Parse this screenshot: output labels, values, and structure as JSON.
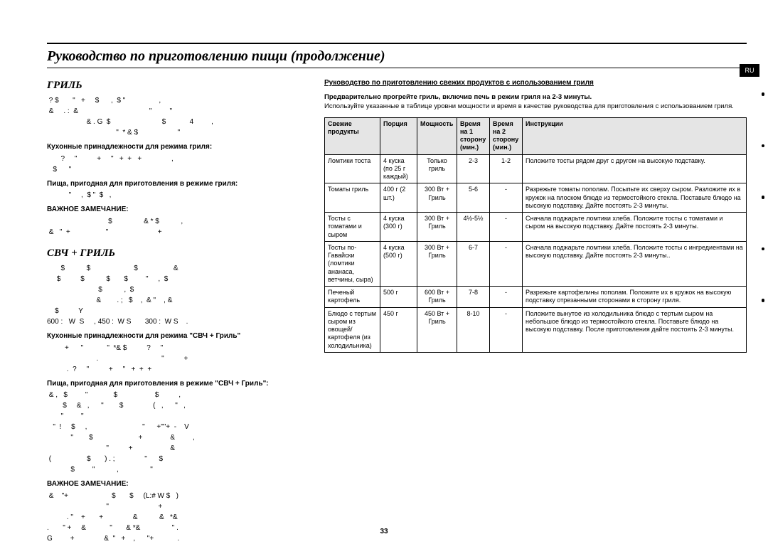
{
  "pageTitle": "Руководство по приготовлению пищи (продолжение)",
  "pageNumber": "33",
  "ruBadge": "RU",
  "left": {
    "sec1_title": "ГРИЛЬ",
    "sec1_p1": " ? $       \"   +     $      ,  $ \"                 ,\n &     . :  &                                    \"         \"         \n                    & . G  $                          $            4         ,\n                                   \"  * & $                    \" ",
    "sec1_sub1": "Кухонные принадлежности для режима гриля:",
    "sec1_p2": "       ?     \"          +     \"   +  +   +               ,  \n   $      \"",
    "sec1_sub2": "Пища, пригодная для приготовления в режиме гриля:",
    "sec1_p3": "           \"     ,  $ \"  $   ,             ",
    "sec1_sub3": "ВАЖНОЕ ЗАМЕЧАНИЕ:",
    "sec1_p4": "                               $                & * $           ,\n &   \"  +                  \"                         +",
    "sec2_title": "СВЧ + ГРИЛЬ",
    "sec2_p1": "       $           $                      $                  &\n     $          $           $       $         \"     ,  $\n                          $           ,  $\n                         &        . ;   $    ,  & \"    , &\n    $          Y                                              \n600 :   W  S     , 450 :  W S       300 :  W S    .",
    "sec2_sub1": "Кухонные принадлежности для режима \"СВЧ + Гриль\"",
    "sec2_p2": "         +      \"            \"  *& $          ?     \"        \n                         .                                \"          +\n          .  ?     \"          +     \"   +  +  +          ",
    "sec2_sub2": "Пища, пригодная для приготовления в режиме \"СВЧ + Гриль\":",
    "sec2_p3": " & ,   $         \"             $                   $          ,           \n        $     &   ,      \"        $               (   ,      \"   ,\n       \"         \" \n   \"  !     $     ,                            \"      +\"\"+  -    V       \n            \"        $                       +              &         ,\n                              \"          +                   &\n (                  $       ) . ;               \"      $           \n            $         \"           ,                \"                     ",
    "sec2_sub3": "ВАЖНОЕ ЗАМЕЧАНИЕ:",
    "sec2_p4": " &    \"+                      $       $     (L:# W $   )      \n                              \"                         +\n          . \"    +       +               &           &   *&       \n.       \" +     &            \"       & *&                \" .\nG         +               &  \"   +    ,      \"+            .    "
  },
  "right": {
    "lead_head": "Руководство по приготовлению свежих продуктов с использованием гриля",
    "lead_bold": "Предварительно прогрейте гриль, включив печь в режим гриля на 2-3 минуты.",
    "lead": "Используйте указанные в таблице уровни мощности и время в качестве руководства для приготовления с использованием гриля.",
    "table": {
      "header": [
        "Свежие продукты",
        "Порция",
        "Мощность",
        "Время на 1 сторону (мин.)",
        "Время на 2 сторону (мин.)",
        "Инструкции"
      ],
      "rows": [
        {
          "c0": "Ломтики тоста",
          "c1": "4 куска (по 25 г каждый)",
          "c2": "Только гриль",
          "c3": "2-3",
          "c4": "1-2",
          "c5": "Положите тосты рядом друг с другом на высокую подставку."
        },
        {
          "c0": "Томаты гриль",
          "c1": "400 г (2 шт.)",
          "c2": "300 Вт + Гриль",
          "c3": "5-6",
          "c4": "-",
          "c5": "Разрежьте томаты пополам. Посыпьте их сверху сыром. Разложите их в кружок на плоском блюде из термостойкого стекла. Поставьте блюдо на высокую подставку. Дайте постоять 2-3 минуты."
        },
        {
          "c0": "Тосты с томатами и сыром",
          "c1": "4 куска (300 г)",
          "c2": "300 Вт + Гриль",
          "c3": "4½-5½",
          "c4": "-",
          "c5": "Сначала поджарьте ломтики хлеба. Положите тосты с томатами и сыром на высокую подставку. Дайте постоять 2-3 минуты."
        },
        {
          "c0": "Тосты по-Гавайски (ломтики ананаса, ветчины, сыра)",
          "c1": "4 куска (500 г)",
          "c2": "300 Вт + Гриль",
          "c3": "6-7",
          "c4": "-",
          "c5": "Сначала поджарьте ломтики хлеба. Положите тосты с ингредиентами на высокую подставку. Дайте постоять 2-3 минуты.."
        },
        {
          "c0": "Печеный картофель",
          "c1": "500 г",
          "c2": "600 Вт + Гриль",
          "c3": "7-8",
          "c4": "-",
          "c5": "Разрежьте картофелины пополам. Положите их в кружок на высокую подставку отрезанными сторонами в сторону гриля."
        },
        {
          "c0": "Блюдо с тертым сыром из овощей/ картофеля (из холодильника)",
          "c1": "450 г",
          "c2": "450 Вт + Гриль",
          "c3": "8-10",
          "c4": "-",
          "c5": "Положите вынутое из холодильника блюдо с тертым сыром на небольшое блюдо из термостойкого стекла. Поставьте блюдо на высокую подставку. После приготовления дайте постоять 2-3 минуты."
        }
      ]
    }
  }
}
